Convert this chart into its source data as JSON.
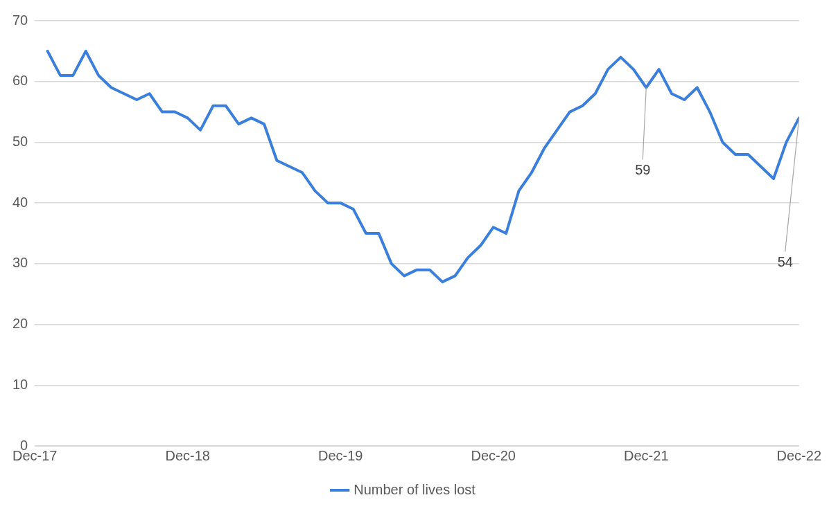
{
  "chart_data": {
    "type": "line",
    "x": [
      "2018-01",
      "2018-02",
      "2018-03",
      "2018-04",
      "2018-05",
      "2018-06",
      "2018-07",
      "2018-08",
      "2018-09",
      "2018-10",
      "2018-11",
      "2018-12",
      "2019-01",
      "2019-02",
      "2019-03",
      "2019-04",
      "2019-05",
      "2019-06",
      "2019-07",
      "2019-08",
      "2019-09",
      "2019-10",
      "2019-11",
      "2019-12",
      "2020-01",
      "2020-02",
      "2020-03",
      "2020-04",
      "2020-05",
      "2020-06",
      "2020-07",
      "2020-08",
      "2020-09",
      "2020-10",
      "2020-11",
      "2020-12",
      "2021-01",
      "2021-02",
      "2021-03",
      "2021-04",
      "2021-05",
      "2021-06",
      "2021-07",
      "2021-08",
      "2021-09",
      "2021-10",
      "2021-11",
      "2021-12",
      "2022-01",
      "2022-02",
      "2022-03",
      "2022-04",
      "2022-05",
      "2022-06",
      "2022-07",
      "2022-08",
      "2022-09",
      "2022-10",
      "2022-11",
      "2022-12"
    ],
    "series": [
      {
        "name": "Number of lives lost",
        "color": "#3a7fdb",
        "values": [
          65,
          61,
          61,
          65,
          61,
          59,
          58,
          57,
          58,
          55,
          55,
          54,
          52,
          56,
          56,
          53,
          54,
          53,
          47,
          46,
          45,
          42,
          40,
          40,
          39,
          35,
          35,
          30,
          28,
          29,
          29,
          27,
          28,
          31,
          33,
          36,
          35,
          42,
          45,
          49,
          52,
          55,
          56,
          58,
          62,
          64,
          62,
          59,
          62,
          58,
          57,
          59,
          55,
          50,
          48,
          48,
          46,
          44,
          50,
          54
        ]
      }
    ],
    "xlim": [
      "2017-12",
      "2022-12"
    ],
    "xticks": [
      {
        "value": "2017-12",
        "label": "Dec-17"
      },
      {
        "value": "2018-12",
        "label": "Dec-18"
      },
      {
        "value": "2019-12",
        "label": "Dec-19"
      },
      {
        "value": "2020-12",
        "label": "Dec-20"
      },
      {
        "value": "2021-12",
        "label": "Dec-21"
      },
      {
        "value": "2022-12",
        "label": "Dec-22"
      }
    ],
    "ylim": [
      0,
      70
    ],
    "yticks": [
      0,
      10,
      20,
      30,
      40,
      50,
      60,
      70
    ],
    "grid": "y",
    "legend": "bottom",
    "marker": "none",
    "line_style": "solid",
    "annotations": [
      {
        "text": "59",
        "x": "2021-12",
        "y": 59
      },
      {
        "text": "54",
        "x": "2022-12",
        "y": 54
      }
    ]
  }
}
